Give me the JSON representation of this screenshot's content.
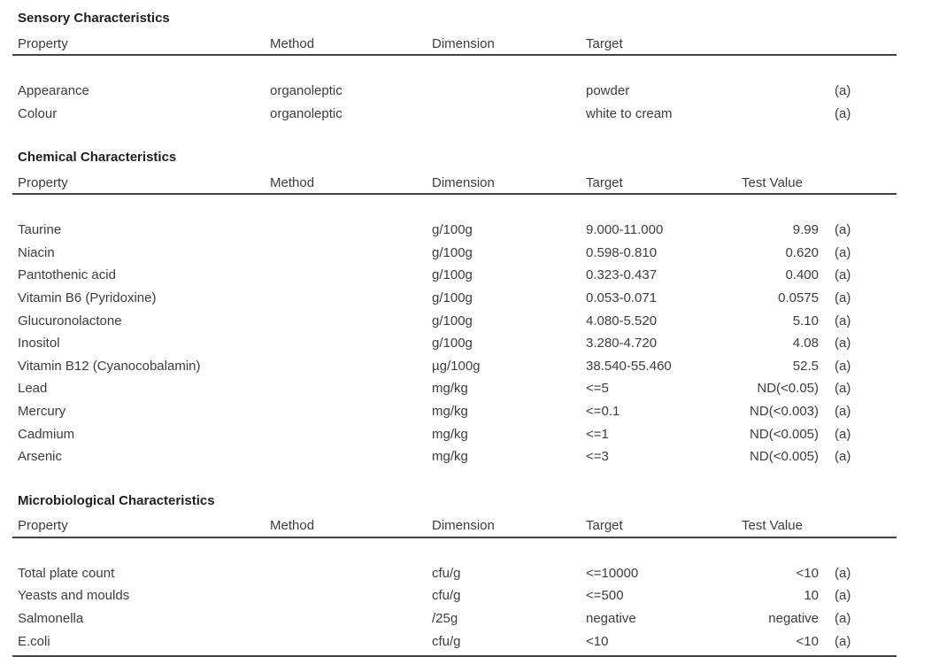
{
  "document": {
    "type": "product-specification-sheet",
    "text_color": "#3d3d3d",
    "heading_color": "#1f1f1f",
    "rule_color": "#424242",
    "note_marker": "(a)"
  },
  "sections": [
    {
      "title": "Sensory Characteristics",
      "headers": {
        "property": "Property",
        "method": "Method",
        "dimension": "Dimension",
        "target": "Target",
        "test_value": ""
      },
      "bottom_rule": false,
      "rows": [
        {
          "property": "Appearance",
          "method": "organoleptic",
          "dimension": "",
          "target": "powder",
          "test_value": "",
          "note": "(a)"
        },
        {
          "property": "Colour",
          "method": "organoleptic",
          "dimension": "",
          "target": "white to cream",
          "test_value": "",
          "note": "(a)"
        }
      ]
    },
    {
      "title": "Chemical Characteristics",
      "headers": {
        "property": "Property",
        "method": "Method",
        "dimension": "Dimension",
        "target": "Target",
        "test_value": "Test Value"
      },
      "bottom_rule": false,
      "rows": [
        {
          "property": "Taurine",
          "method": "",
          "dimension": "g/100g",
          "target": "9.000-11.000",
          "test_value": "9.99",
          "note": "(a)"
        },
        {
          "property": "Niacin",
          "method": "",
          "dimension": "g/100g",
          "target": "0.598-0.810",
          "test_value": "0.620",
          "note": "(a)"
        },
        {
          "property": "Pantothenic acid",
          "method": "",
          "dimension": "g/100g",
          "target": "0.323-0.437",
          "test_value": "0.400",
          "note": "(a)"
        },
        {
          "property": "Vitamin B6 (Pyridoxine)",
          "method": "",
          "dimension": "g/100g",
          "target": "0.053-0.071",
          "test_value": "0.0575",
          "note": "(a)"
        },
        {
          "property": "Glucuronolactone",
          "method": "",
          "dimension": "g/100g",
          "target": "4.080-5.520",
          "test_value": "5.10",
          "note": "(a)"
        },
        {
          "property": "Inositol",
          "method": "",
          "dimension": "g/100g",
          "target": "3.280-4.720",
          "test_value": "4.08",
          "note": "(a)"
        },
        {
          "property": "Vitamin B12 (Cyanocobalamin)",
          "method": "",
          "dimension": "µg/100g",
          "target": "38.540-55.460",
          "test_value": "52.5",
          "note": "(a)"
        },
        {
          "property": "Lead",
          "method": "",
          "dimension": "mg/kg",
          "target": "<=5",
          "test_value": "ND(<0.05)",
          "note": "(a)"
        },
        {
          "property": "Mercury",
          "method": "",
          "dimension": "mg/kg",
          "target": "<=0.1",
          "test_value": "ND(<0.003)",
          "note": "(a)"
        },
        {
          "property": "Cadmium",
          "method": "",
          "dimension": "mg/kg",
          "target": "<=1",
          "test_value": "ND(<0.005)",
          "note": "(a)"
        },
        {
          "property": "Arsenic",
          "method": "",
          "dimension": "mg/kg",
          "target": "<=3",
          "test_value": "ND(<0.005)",
          "note": "(a)"
        }
      ]
    },
    {
      "title": "Microbiological Characteristics",
      "headers": {
        "property": "Property",
        "method": "Method",
        "dimension": "Dimension",
        "target": "Target",
        "test_value": "Test Value"
      },
      "bottom_rule": true,
      "rows": [
        {
          "property": "Total plate count",
          "method": "",
          "dimension": "cfu/g",
          "target": "<=10000",
          "test_value": "<10",
          "note": "(a)"
        },
        {
          "property": "Yeasts and moulds",
          "method": "",
          "dimension": "cfu/g",
          "target": "<=500",
          "test_value": "10",
          "note": "(a)"
        },
        {
          "property": "Salmonella",
          "method": "",
          "dimension": "/25g",
          "target": "negative",
          "test_value": "negative",
          "note": "(a)"
        },
        {
          "property": "E.coli",
          "method": "",
          "dimension": "cfu/g",
          "target": "<10",
          "test_value": "<10",
          "note": "(a)"
        }
      ]
    }
  ]
}
